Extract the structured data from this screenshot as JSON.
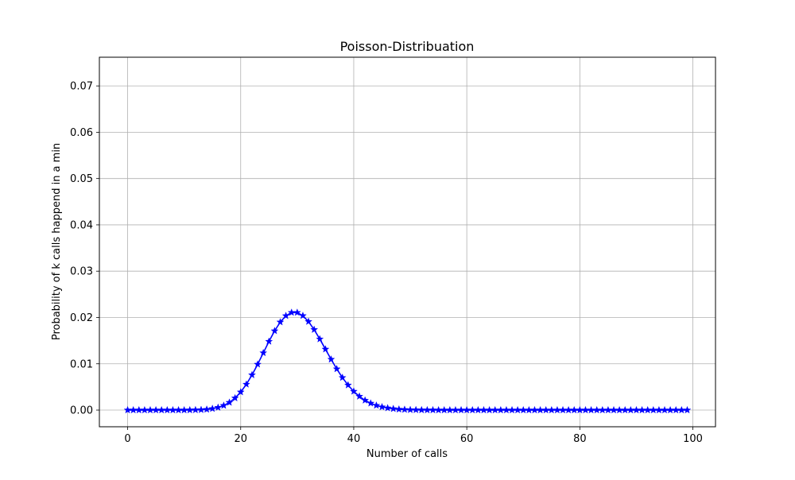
{
  "chart_data": {
    "type": "line",
    "title": "Poisson-Distribuation",
    "xlabel": "Number of calls",
    "ylabel": "Probability of k calls happend in a min",
    "xlim": [
      -5,
      104
    ],
    "ylim": [
      -0.0036,
      0.0762
    ],
    "xticks": [
      0,
      20,
      40,
      60,
      80,
      100
    ],
    "xtick_labels": [
      "0",
      "20",
      "40",
      "60",
      "80",
      "100"
    ],
    "yticks": [
      0.0,
      0.01,
      0.02,
      0.03,
      0.04,
      0.05,
      0.06,
      0.07
    ],
    "ytick_labels": [
      "0.00",
      "0.01",
      "0.02",
      "0.03",
      "0.04",
      "0.05",
      "0.06",
      "0.07"
    ],
    "grid": true,
    "lambda": 30,
    "marker": "star",
    "series": [
      {
        "color": "#0000ff",
        "x": [
          0,
          1,
          2,
          3,
          4,
          5,
          6,
          7,
          8,
          9,
          10,
          11,
          12,
          13,
          14,
          15,
          16,
          17,
          18,
          19,
          20,
          21,
          22,
          23,
          24,
          25,
          26,
          27,
          28,
          29,
          30,
          31,
          32,
          33,
          34,
          35,
          36,
          37,
          38,
          39,
          40,
          41,
          42,
          43,
          44,
          45,
          46,
          47,
          48,
          49,
          50,
          51,
          52,
          53,
          54,
          55,
          56,
          57,
          58,
          59,
          60,
          61,
          62,
          63,
          64,
          65,
          66,
          67,
          68,
          69,
          70,
          71,
          72,
          73,
          74,
          75,
          76,
          77,
          78,
          79,
          80,
          81,
          82,
          83,
          84,
          85,
          86,
          87,
          88,
          89,
          90,
          91,
          92,
          93,
          94,
          95,
          96,
          97,
          98,
          99
        ],
        "y": [
          0,
          0,
          0,
          0,
          0,
          0,
          0,
          0,
          0,
          0,
          0,
          1e-05,
          3e-05,
          6e-05,
          0.00014,
          0.0003,
          0.00056,
          0.00098,
          0.00164,
          0.00259,
          0.00389,
          0.00556,
          0.00758,
          0.00988,
          0.01235,
          0.01482,
          0.0171,
          0.019,
          0.02036,
          0.02106,
          0.02106,
          0.02038,
          0.01911,
          0.01737,
          0.01533,
          0.01314,
          0.01095,
          0.00888,
          0.00701,
          0.00539,
          0.00404,
          0.00296,
          0.00211,
          0.00147,
          0.001,
          0.00067,
          0.00044,
          0.00028,
          0.00017,
          0.00011,
          6e-05,
          4e-05,
          2e-05,
          1e-05,
          1e-05,
          0,
          0,
          0,
          0,
          0,
          0,
          0,
          0,
          0,
          0,
          0,
          0,
          0,
          0,
          0,
          0,
          0,
          0,
          0,
          0,
          0,
          0,
          0,
          0,
          0,
          0,
          0,
          0,
          0,
          0,
          0,
          0,
          0,
          0,
          0,
          0,
          0,
          0,
          0,
          0,
          0,
          0,
          0,
          0,
          0
        ]
      }
    ]
  }
}
